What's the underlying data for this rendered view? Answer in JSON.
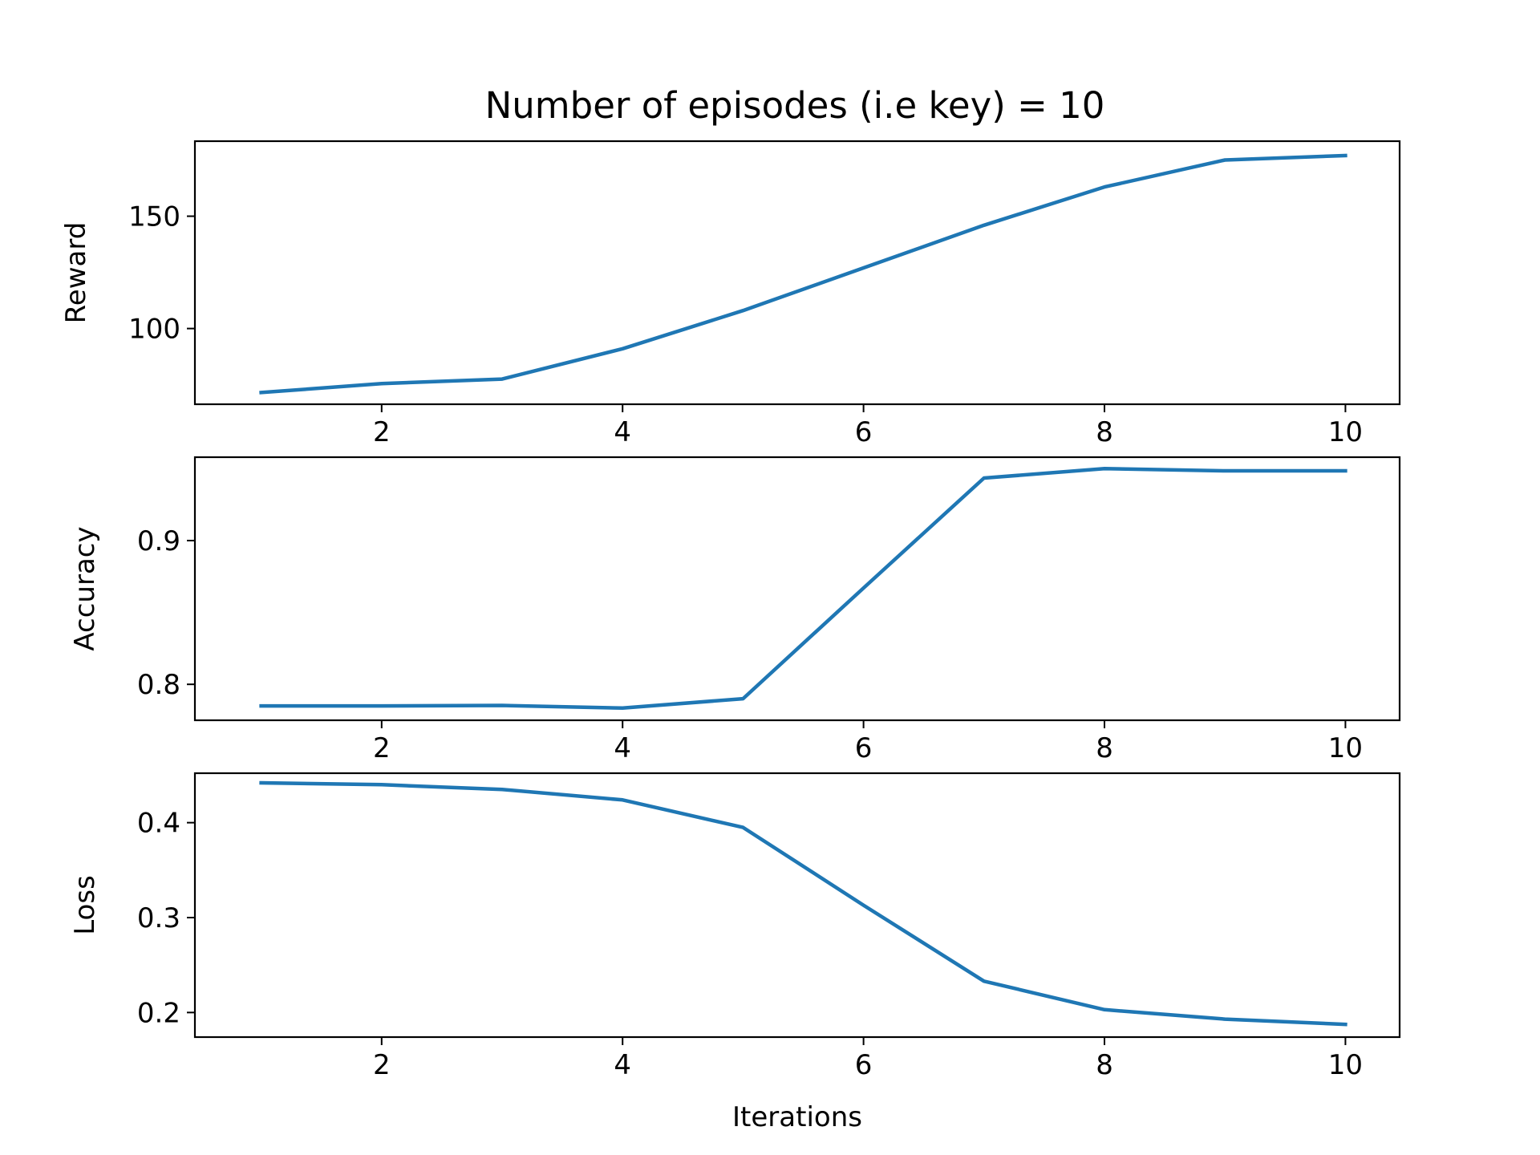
{
  "chart_data": {
    "title": "Number of episodes (i.e key) = 10",
    "line_color": "#1f77b4",
    "panels": [
      {
        "type": "line",
        "ylabel": "Reward",
        "xlabel": "",
        "x": [
          1,
          2,
          3,
          4,
          5,
          6,
          7,
          8,
          9,
          10
        ],
        "y": [
          71.5,
          75.5,
          77.5,
          91,
          108,
          127,
          146,
          163,
          175,
          177
        ],
        "xlim": [
          0.45,
          10.45
        ],
        "ylim": [
          66.3,
          183.4
        ],
        "xticks": [
          2,
          4,
          6,
          8,
          10
        ],
        "xtick_labels": [
          "2",
          "4",
          "6",
          "8",
          "10"
        ],
        "yticks": [
          100,
          150
        ],
        "ytick_labels": [
          "100",
          "150"
        ],
        "grid": false
      },
      {
        "type": "line",
        "ylabel": "Accuracy",
        "xlabel": "",
        "x": [
          1,
          2,
          3,
          4,
          5,
          6,
          7,
          8,
          9,
          10
        ],
        "y": [
          0.785,
          0.785,
          0.7853,
          0.7835,
          0.79,
          0.867,
          0.9435,
          0.95,
          0.9485,
          0.9485
        ],
        "xlim": [
          0.45,
          10.45
        ],
        "ylim": [
          0.775,
          0.958
        ],
        "xticks": [
          2,
          4,
          6,
          8,
          10
        ],
        "xtick_labels": [
          "2",
          "4",
          "6",
          "8",
          "10"
        ],
        "yticks": [
          0.8,
          0.9
        ],
        "ytick_labels": [
          "0.8",
          "0.9"
        ],
        "grid": false
      },
      {
        "type": "line",
        "ylabel": "Loss",
        "xlabel": "Iterations",
        "x": [
          1,
          2,
          3,
          4,
          5,
          6,
          7,
          8,
          9,
          10
        ],
        "y": [
          0.442,
          0.44,
          0.435,
          0.424,
          0.395,
          0.313,
          0.233,
          0.203,
          0.193,
          0.1875
        ],
        "xlim": [
          0.45,
          10.45
        ],
        "ylim": [
          0.1741,
          0.4521
        ],
        "xticks": [
          2,
          4,
          6,
          8,
          10
        ],
        "xtick_labels": [
          "2",
          "4",
          "6",
          "8",
          "10"
        ],
        "yticks": [
          0.2,
          0.3,
          0.4
        ],
        "ytick_labels": [
          "0.2",
          "0.3",
          "0.4"
        ],
        "grid": false
      }
    ]
  }
}
